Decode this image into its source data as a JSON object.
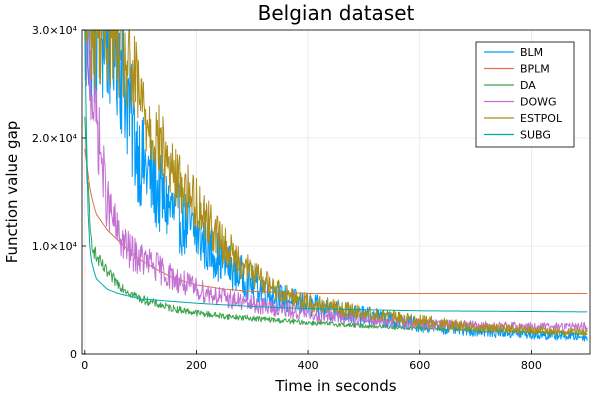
{
  "chart_data": {
    "type": "line",
    "title": "Belgian dataset",
    "xlabel": "Time in seconds",
    "ylabel": "Function value gap",
    "xlim": [
      -5,
      905
    ],
    "ylim": [
      0,
      30000
    ],
    "x_ticks": [
      0,
      200,
      400,
      600,
      800
    ],
    "x_tick_labels": [
      "0",
      "200",
      "400",
      "600",
      "800"
    ],
    "y_ticks": [
      0,
      10000,
      20000,
      30000
    ],
    "y_tick_labels": [
      "0",
      "1.0×10⁴",
      "2.0×10⁴",
      "3.0×10⁴"
    ],
    "grid": true,
    "legend_position": "top-right",
    "series": [
      {
        "name": "BLM",
        "color": "#009af9",
        "noise": 0.26,
        "x": [
          0,
          55,
          70,
          85,
          100,
          130,
          160,
          200,
          250,
          300,
          350,
          400,
          450,
          500,
          550,
          600,
          650,
          700,
          750,
          800,
          850,
          900
        ],
        "y": [
          30000,
          30000,
          26000,
          21000,
          18000,
          15000,
          13000,
          11000,
          8500,
          6500,
          5200,
          4500,
          4000,
          3500,
          3100,
          2700,
          2400,
          2200,
          2000,
          1800,
          1700,
          1600
        ]
      },
      {
        "name": "BPLM",
        "color": "#e26f46",
        "noise": 0.0,
        "x": [
          0,
          10,
          20,
          40,
          60,
          80,
          100,
          130,
          160,
          200,
          250,
          300,
          350,
          400,
          900
        ],
        "y": [
          19000,
          15000,
          13000,
          11500,
          10500,
          9500,
          8700,
          7800,
          7000,
          6400,
          6000,
          5800,
          5700,
          5600,
          5600
        ]
      },
      {
        "name": "DA",
        "color": "#3da44d",
        "noise": 0.08,
        "x": [
          0,
          10,
          20,
          40,
          60,
          80,
          100,
          150,
          200,
          250,
          300,
          400,
          500,
          600,
          700,
          800,
          900
        ],
        "y": [
          21000,
          11000,
          9000,
          7500,
          6500,
          5700,
          5100,
          4300,
          3800,
          3500,
          3300,
          2900,
          2600,
          2400,
          2200,
          2000,
          1900
        ]
      },
      {
        "name": "DOWG",
        "color": "#c271d2",
        "noise": 0.18,
        "x": [
          0,
          20,
          40,
          60,
          80,
          100,
          130,
          160,
          200,
          250,
          300,
          400,
          500,
          600,
          700,
          800,
          900
        ],
        "y": [
          30000,
          22000,
          14000,
          11000,
          9500,
          8800,
          8000,
          7000,
          6000,
          5200,
          4600,
          3700,
          3200,
          2800,
          2600,
          2500,
          2500
        ]
      },
      {
        "name": "ESTPOL",
        "color": "#ac8d18",
        "noise": 0.18,
        "x": [
          0,
          40,
          50,
          70,
          90,
          110,
          130,
          160,
          200,
          250,
          300,
          350,
          400,
          450,
          500,
          600,
          700,
          800,
          900
        ],
        "y": [
          30000,
          30000,
          30000,
          27000,
          25000,
          22000,
          20000,
          16500,
          14000,
          10000,
          7500,
          5800,
          4800,
          4300,
          3800,
          3100,
          2500,
          2200,
          2000
        ]
      },
      {
        "name": "SUBG",
        "color": "#00a9ad",
        "noise": 0.0,
        "x": [
          0,
          5,
          10,
          20,
          40,
          60,
          100,
          150,
          200,
          300,
          400,
          600,
          900
        ],
        "y": [
          30000,
          14000,
          9000,
          7000,
          6000,
          5600,
          5100,
          4900,
          4700,
          4400,
          4200,
          4000,
          3900
        ]
      }
    ]
  }
}
